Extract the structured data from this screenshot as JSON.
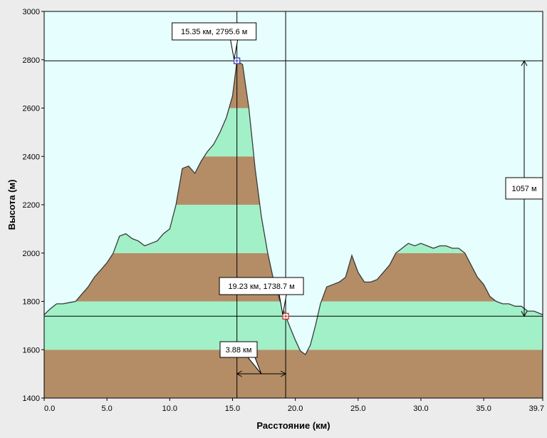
{
  "chart_data": {
    "type": "area",
    "xlabel": "Расстояние   (км)",
    "ylabel": "Высота  (м)",
    "xlim": [
      0,
      39.7
    ],
    "ylim": [
      1400,
      3000
    ],
    "x_ticks": [
      0,
      5,
      10,
      15,
      20,
      25,
      30,
      35,
      39.7
    ],
    "x_tick_labels": [
      "0.0",
      "5.0",
      "10.0",
      "15.0",
      "20.0",
      "25.0",
      "30.0",
      "35.0",
      "39.7"
    ],
    "y_ticks": [
      1400,
      1600,
      1800,
      2000,
      2200,
      2400,
      2600,
      2800,
      3000
    ],
    "y_tick_labels": [
      "1400",
      "1600",
      "1800",
      "2000",
      "2200",
      "2400",
      "2600",
      "2800",
      "3000"
    ],
    "band_step": 200,
    "colors": {
      "background": "#e6fefe",
      "band_dark": "#b48d66",
      "band_light": "#a2f0c8",
      "profile_line": "#3a3a3a"
    },
    "series": [
      {
        "x": [
          0,
          0.5,
          1.0,
          1.5,
          2.0,
          2.5,
          3.0,
          3.5,
          4.0,
          4.5,
          5.0,
          5.5,
          6.0,
          6.5,
          7.0,
          7.5,
          8.0,
          8.5,
          9.0,
          9.5,
          10.0,
          10.5,
          11.0,
          11.5,
          12.0,
          12.5,
          13.0,
          13.5,
          14.0,
          14.5,
          15.0,
          15.35,
          15.8,
          16.3,
          16.8,
          17.3,
          17.8,
          18.3,
          18.8,
          19.23,
          19.6,
          20.0,
          20.4,
          20.8,
          21.2,
          21.6,
          22.0,
          22.5,
          23.0,
          23.5,
          24.0,
          24.5,
          25.0,
          25.5,
          26.0,
          26.5,
          27.0,
          27.5,
          28.0,
          28.5,
          29.0,
          29.5,
          30.0,
          30.5,
          31.0,
          31.5,
          32.0,
          32.5,
          33.0,
          33.5,
          34.0,
          34.5,
          35.0,
          35.5,
          36.0,
          36.5,
          37.0,
          37.5,
          38.0,
          38.5,
          39.0,
          39.7
        ],
        "y": [
          1745,
          1770,
          1790,
          1790,
          1795,
          1800,
          1830,
          1860,
          1900,
          1930,
          1960,
          2000,
          2070,
          2080,
          2060,
          2050,
          2030,
          2040,
          2050,
          2080,
          2100,
          2200,
          2350,
          2360,
          2330,
          2380,
          2420,
          2450,
          2500,
          2560,
          2650,
          2795.6,
          2780,
          2600,
          2350,
          2150,
          2000,
          1880,
          1800,
          1738.7,
          1690,
          1640,
          1595,
          1580,
          1620,
          1700,
          1790,
          1860,
          1870,
          1880,
          1900,
          1990,
          1920,
          1880,
          1880,
          1890,
          1920,
          1950,
          2000,
          2020,
          2040,
          2030,
          2040,
          2030,
          2020,
          2030,
          2030,
          2020,
          2020,
          2000,
          1950,
          1900,
          1870,
          1820,
          1800,
          1790,
          1790,
          1780,
          1780,
          1760,
          1760,
          1745
        ]
      }
    ],
    "markers": [
      {
        "x": 15.35,
        "y": 2795.6,
        "label": "15.35 км, 2795.6 м",
        "color": "#3030c0"
      },
      {
        "x": 19.23,
        "y": 1738.7,
        "label": "19.23 км, 1738.7 м",
        "color": "#d02020"
      }
    ],
    "annotations": {
      "dx_label": "3.88 км",
      "dy_label": "1057 м"
    }
  }
}
